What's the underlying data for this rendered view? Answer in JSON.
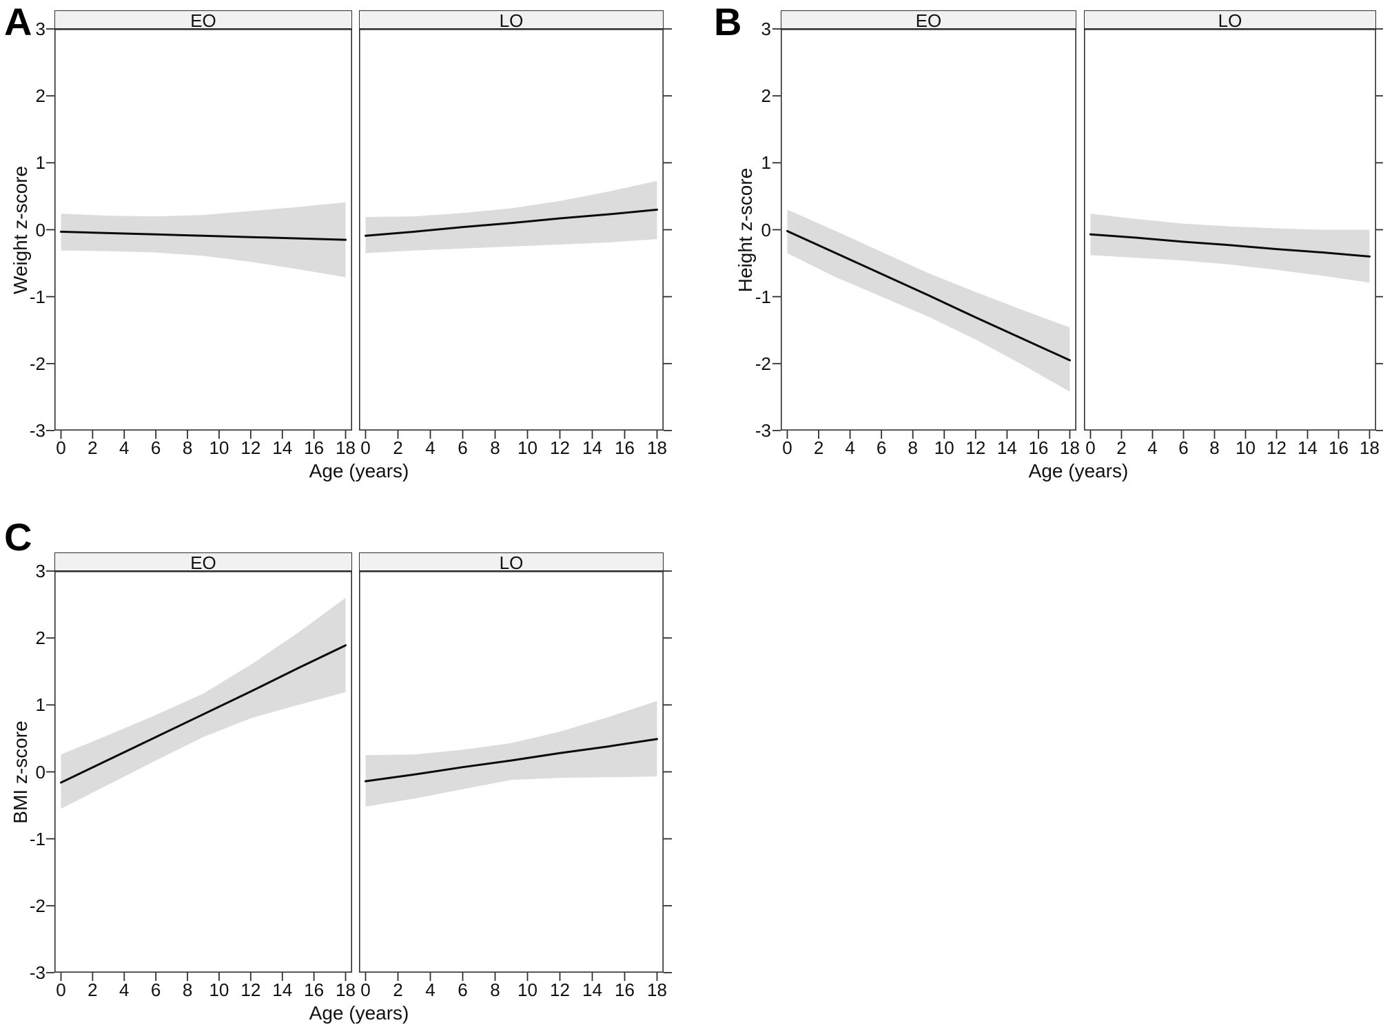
{
  "figure_background": "#ffffff",
  "style": {
    "band_fill": "#dcdcdc",
    "line_color": "#0a0a0a",
    "frame_color": "#2e2e2e",
    "facet_header_fill": "#f1f1f1",
    "tick_color": "#2e2e2e"
  },
  "chart_data": [
    {
      "type": "line",
      "panel_letter": "A",
      "ylabel": "Weight z-score",
      "xlabel": "Age (years)",
      "xlim": [
        0,
        18
      ],
      "ylim": [
        -3,
        3
      ],
      "x_ticks": [
        0,
        2,
        4,
        6,
        8,
        10,
        12,
        14,
        16,
        18
      ],
      "y_ticks": [
        3,
        2,
        1,
        0,
        -1,
        -2,
        -3
      ],
      "grid": false,
      "legend": "none",
      "facets": [
        {
          "name": "EO",
          "x": [
            0,
            3,
            6,
            9,
            12,
            15,
            18
          ],
          "line": [
            -0.03,
            -0.05,
            -0.07,
            -0.09,
            -0.11,
            -0.13,
            -0.15
          ],
          "ci_upper": [
            0.24,
            0.21,
            0.2,
            0.22,
            0.28,
            0.34,
            0.41
          ],
          "ci_lower": [
            -0.31,
            -0.32,
            -0.34,
            -0.39,
            -0.48,
            -0.59,
            -0.71
          ]
        },
        {
          "name": "LO",
          "x": [
            0,
            3,
            6,
            9,
            12,
            15,
            18
          ],
          "line": [
            -0.09,
            -0.03,
            0.04,
            0.1,
            0.17,
            0.23,
            0.3
          ],
          "ci_upper": [
            0.19,
            0.2,
            0.25,
            0.32,
            0.43,
            0.57,
            0.73
          ],
          "ci_lower": [
            -0.35,
            -0.31,
            -0.28,
            -0.25,
            -0.22,
            -0.19,
            -0.14
          ]
        }
      ]
    },
    {
      "type": "line",
      "panel_letter": "B",
      "ylabel": "Height z-score",
      "xlabel": "Age (years)",
      "xlim": [
        0,
        18
      ],
      "ylim": [
        -3,
        3
      ],
      "x_ticks": [
        0,
        2,
        4,
        6,
        8,
        10,
        12,
        14,
        16,
        18
      ],
      "y_ticks": [
        3,
        2,
        1,
        0,
        -1,
        -2,
        -3
      ],
      "grid": false,
      "legend": "none",
      "facets": [
        {
          "name": "EO",
          "x": [
            0,
            3,
            6,
            9,
            12,
            15,
            18
          ],
          "line": [
            -0.02,
            -0.34,
            -0.66,
            -0.98,
            -1.31,
            -1.63,
            -1.95
          ],
          "ci_upper": [
            0.3,
            -0.01,
            -0.33,
            -0.65,
            -0.93,
            -1.2,
            -1.46
          ],
          "ci_lower": [
            -0.35,
            -0.7,
            -1.0,
            -1.3,
            -1.64,
            -2.02,
            -2.42
          ]
        },
        {
          "name": "LO",
          "x": [
            0,
            3,
            6,
            9,
            12,
            15,
            18
          ],
          "line": [
            -0.07,
            -0.12,
            -0.18,
            -0.23,
            -0.29,
            -0.34,
            -0.4
          ],
          "ci_upper": [
            0.24,
            0.16,
            0.09,
            0.05,
            0.02,
            0.0,
            0.0
          ],
          "ci_lower": [
            -0.38,
            -0.42,
            -0.46,
            -0.52,
            -0.6,
            -0.69,
            -0.79
          ]
        }
      ]
    },
    {
      "type": "line",
      "panel_letter": "C",
      "ylabel": "BMI z-score",
      "xlabel": "Age (years)",
      "xlim": [
        0,
        18
      ],
      "ylim": [
        -3,
        3
      ],
      "x_ticks": [
        0,
        2,
        4,
        6,
        8,
        10,
        12,
        14,
        16,
        18
      ],
      "y_ticks": [
        3,
        2,
        1,
        0,
        -1,
        -2,
        -3
      ],
      "grid": false,
      "legend": "none",
      "facets": [
        {
          "name": "EO",
          "x": [
            0,
            3,
            6,
            9,
            12,
            15,
            18
          ],
          "line": [
            -0.16,
            0.18,
            0.52,
            0.86,
            1.2,
            1.55,
            1.89
          ],
          "ci_upper": [
            0.26,
            0.55,
            0.85,
            1.17,
            1.6,
            2.08,
            2.6
          ],
          "ci_lower": [
            -0.55,
            -0.19,
            0.17,
            0.52,
            0.8,
            1.0,
            1.19
          ]
        },
        {
          "name": "LO",
          "x": [
            0,
            3,
            6,
            9,
            12,
            15,
            18
          ],
          "line": [
            -0.14,
            -0.04,
            0.07,
            0.17,
            0.28,
            0.38,
            0.49
          ],
          "ci_upper": [
            0.25,
            0.26,
            0.33,
            0.43,
            0.6,
            0.82,
            1.06
          ],
          "ci_lower": [
            -0.52,
            -0.4,
            -0.26,
            -0.12,
            -0.09,
            -0.08,
            -0.07
          ]
        }
      ]
    }
  ]
}
